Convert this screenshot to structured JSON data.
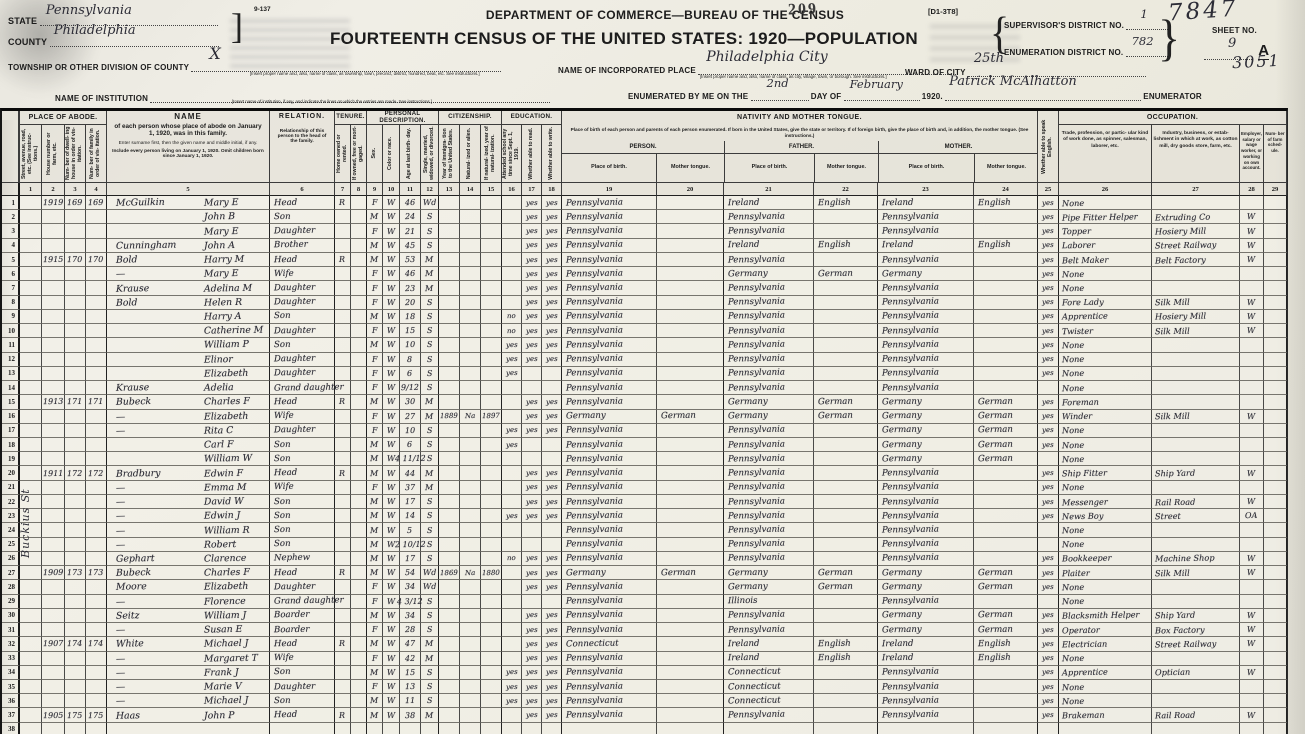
{
  "header": {
    "form_number": "9-137",
    "stamp": "209",
    "form_code": "[D1-3T8]",
    "dept_line": "DEPARTMENT OF COMMERCE—BUREAU OF THE CENSUS",
    "title_line": "FOURTEENTH CENSUS OF THE UNITED STATES: 1920—POPULATION",
    "state_label": "State",
    "state_value": "Pennsylvania",
    "county_label": "County",
    "county_value": "Philadelphia",
    "township_label": "Township or other division of county",
    "township_value": "X",
    "township_note": "[Insert proper name and, also, name of class, as township, town, precinct, district, hundred, beat, etc.   See instructions.]",
    "institution_label": "Name of Institution",
    "institution_note": "[Insert name of institution, if any, and indicate the lines on which the entries are made.   See instructions.]",
    "place_label": "Name of incorporated place",
    "place_value": "Philadelphia City",
    "place_note": "[Insert proper name and, also, name of class, as city, village, town, or borough.   See instructions.]",
    "ward_label": "Ward of city",
    "ward_value": "25th",
    "supervisor_label": "Supervisor's District No.",
    "supervisor_value": "1",
    "enumeration_label": "Enumeration District No.",
    "enumeration_value": "782",
    "sheet_label": "Sheet No.",
    "sheet_value": "9",
    "sheet_letter": "A",
    "handwritten_top": "7847",
    "handwritten_side": "3051",
    "enumerated_pre": "Enumerated by me on the",
    "enumerated_day": "2nd",
    "day_of_label": "day of",
    "enumerated_month": "February",
    "enumerated_year": "1920.",
    "enumerator_name": "Patrick McAlhatton",
    "enumerator_label": "Enumerator"
  },
  "table": {
    "street_name": "Buckius St",
    "groups": {
      "abode": "PLACE OF ABODE.",
      "tenure": "TENURE.",
      "persdesc": "PERSONAL DESCRIPTION.",
      "citizenship": "CITIZENSHIP.",
      "education": "EDUCATION.",
      "nativity": "NATIVITY AND MOTHER TONGUE.",
      "occupation": "OCCUPATION.",
      "person": "PERSON.",
      "father": "FATHER.",
      "mother": "MOTHER.",
      "pob": "Place of birth.",
      "tongue": "Mother tongue."
    },
    "name_header": {
      "title": "NAME",
      "line1": "of each person whose place of abode on January 1, 1920, was in this family.",
      "line2": "Enter surname first, then the given name and middle initial, if any.",
      "line3": "Include every person living on January 1, 1920.  Omit children born since January 1, 1920."
    },
    "relation_header": {
      "title": "RELATION.",
      "line1": "Relationship of this person to the head of the family."
    },
    "nativity_note": "Place of birth of each person and parents of each person enumerated.  If born in the United States, give the state or territory.  If of foreign birth, give the place of birth and, in addition, the mother tongue.  (See instructions.)",
    "cols": {
      "c1": "Street, avenue, road, etc.  (See instruc- tions.)",
      "c2": "House number or farm, etc.",
      "c3": "Num- ber of dwell- ing house in order of vis- itation.",
      "c4": "Num- ber of family in order of vis- itation.",
      "c7": "Home owned or rented.",
      "c8": "If owned, free or mort- gaged.",
      "c9": "Sex.",
      "c10": "Color or race.",
      "c11": "Age at last birth- day.",
      "c12": "Single, married, widowed, or divorced.",
      "c13": "Year of immigra- tion to the United States.",
      "c14": "Natural- ized or alien.",
      "c15": "If natural- ized, year of natural- ization.",
      "c16": "Attended school any time since Sept. 1, 1919.",
      "c17": "Whether able to read.",
      "c18": "Whether able to write.",
      "c25": "Whether able to speak English.",
      "c26": "Trade, profession, or partic- ular kind of work done, as spinner, salesman, laborer, etc.",
      "c27": "Industry, business, or estab- lishment in which at work, as cotton mill, dry goods store, farm, etc.",
      "c28": "Employer, salary or wage worker, or working on own account.",
      "c29": "Num- ber of farm sched- ule."
    },
    "col_numbers": [
      "1",
      "2",
      "3",
      "4",
      "5",
      "6",
      "7",
      "8",
      "9",
      "10",
      "11",
      "12",
      "13",
      "14",
      "15",
      "16",
      "17",
      "18",
      "19",
      "20",
      "21",
      "22",
      "23",
      "24",
      "25",
      "26",
      "27",
      "28",
      "29"
    ]
  },
  "rows": [
    {
      "num": "1",
      "house": "1919",
      "dwell": "169",
      "fam": "169",
      "surname": "McGuilkin",
      "given": "Mary E",
      "rel": "Head",
      "ten": "R",
      "sex": "F",
      "color": "W",
      "age": "46",
      "mar": "Wd",
      "read": "yes",
      "write": "yes",
      "pob": "Pennsylvania",
      "fpob": "Ireland",
      "ftongue": "English",
      "mpob": "Ireland",
      "mtongue": "English",
      "eng": "yes",
      "trade": "None"
    },
    {
      "num": "2",
      "given": "John B",
      "rel": "Son",
      "sex": "M",
      "color": "W",
      "age": "24",
      "mar": "S",
      "read": "yes",
      "write": "yes",
      "pob": "Pennsylvania",
      "fpob": "Pennsylvania",
      "mpob": "Pennsylvania",
      "eng": "yes",
      "trade": "Pipe Fitter Helper",
      "ind": "Extruding Co",
      "emp": "W"
    },
    {
      "num": "3",
      "given": "Mary E",
      "rel": "Daughter",
      "sex": "F",
      "color": "W",
      "age": "21",
      "mar": "S",
      "read": "yes",
      "write": "yes",
      "pob": "Pennsylvania",
      "fpob": "Pennsylvania",
      "mpob": "Pennsylvania",
      "eng": "yes",
      "trade": "Topper",
      "ind": "Hosiery Mill",
      "emp": "W"
    },
    {
      "num": "4",
      "surname": "Cunningham",
      "given": "John A",
      "rel": "Brother",
      "sex": "M",
      "color": "W",
      "age": "45",
      "mar": "S",
      "read": "yes",
      "write": "yes",
      "pob": "Pennsylvania",
      "fpob": "Ireland",
      "ftongue": "English",
      "mpob": "Ireland",
      "mtongue": "English",
      "eng": "yes",
      "trade": "Laborer",
      "ind": "Street Railway",
      "emp": "W"
    },
    {
      "num": "5",
      "house": "1915",
      "dwell": "170",
      "fam": "170",
      "surname": "Bold",
      "given": "Harry M",
      "rel": "Head",
      "ten": "R",
      "sex": "M",
      "color": "W",
      "age": "53",
      "mar": "M",
      "read": "yes",
      "write": "yes",
      "pob": "Pennsylvania",
      "fpob": "Pennsylvania",
      "mpob": "Pennsylvania",
      "eng": "yes",
      "trade": "Belt Maker",
      "ind": "Belt Factory",
      "emp": "W"
    },
    {
      "num": "6",
      "surname": "—",
      "given": "Mary E",
      "rel": "Wife",
      "sex": "F",
      "color": "W",
      "age": "46",
      "mar": "M",
      "read": "yes",
      "write": "yes",
      "pob": "Pennsylvania",
      "fpob": "Germany",
      "ftongue": "German",
      "mpob": "Germany",
      "eng": "yes",
      "trade": "None"
    },
    {
      "num": "7",
      "surname": "Krause",
      "given": "Adelina M",
      "rel": "Daughter",
      "sex": "F",
      "color": "W",
      "age": "23",
      "mar": "M",
      "read": "yes",
      "write": "yes",
      "pob": "Pennsylvania",
      "fpob": "Pennsylvania",
      "mpob": "Pennsylvania",
      "eng": "yes",
      "trade": "None"
    },
    {
      "num": "8",
      "surname": "Bold",
      "given": "Helen R",
      "rel": "Daughter",
      "sex": "F",
      "color": "W",
      "age": "20",
      "mar": "S",
      "read": "yes",
      "write": "yes",
      "pob": "Pennsylvania",
      "fpob": "Pennsylvania",
      "mpob": "Pennsylvania",
      "eng": "yes",
      "trade": "Fore Lady",
      "ind": "Silk Mill",
      "emp": "W"
    },
    {
      "num": "9",
      "given": "Harry A",
      "rel": "Son",
      "sex": "M",
      "color": "W",
      "age": "18",
      "mar": "S",
      "school": "no",
      "read": "yes",
      "write": "yes",
      "pob": "Pennsylvania",
      "fpob": "Pennsylvania",
      "mpob": "Pennsylvania",
      "eng": "yes",
      "trade": "Apprentice",
      "ind": "Hosiery Mill",
      "emp": "W"
    },
    {
      "num": "10",
      "given": "Catherine M",
      "rel": "Daughter",
      "sex": "F",
      "color": "W",
      "age": "15",
      "mar": "S",
      "school": "no",
      "read": "yes",
      "write": "yes",
      "pob": "Pennsylvania",
      "fpob": "Pennsylvania",
      "mpob": "Pennsylvania",
      "eng": "yes",
      "trade": "Twister",
      "ind": "Silk Mill",
      "emp": "W"
    },
    {
      "num": "11",
      "given": "William P",
      "rel": "Son",
      "sex": "M",
      "color": "W",
      "age": "10",
      "mar": "S",
      "school": "yes",
      "read": "yes",
      "write": "yes",
      "pob": "Pennsylvania",
      "fpob": "Pennsylvania",
      "mpob": "Pennsylvania",
      "eng": "yes",
      "trade": "None"
    },
    {
      "num": "12",
      "given": "Elinor",
      "rel": "Daughter",
      "sex": "F",
      "color": "W",
      "age": "8",
      "mar": "S",
      "school": "yes",
      "read": "yes",
      "write": "yes",
      "pob": "Pennsylvania",
      "fpob": "Pennsylvania",
      "mpob": "Pennsylvania",
      "eng": "yes",
      "trade": "None"
    },
    {
      "num": "13",
      "given": "Elizabeth",
      "rel": "Daughter",
      "sex": "F",
      "color": "W",
      "age": "6",
      "mar": "S",
      "school": "yes",
      "pob": "Pennsylvania",
      "fpob": "Pennsylvania",
      "mpob": "Pennsylvania",
      "eng": "yes",
      "trade": "None"
    },
    {
      "num": "14",
      "surname": "Krause",
      "given": "Adelia",
      "rel": "Grand daughter",
      "sex": "F",
      "color": "W",
      "age": "9/12",
      "mar": "S",
      "pob": "Pennsylvania",
      "fpob": "Pennsylvania",
      "mpob": "Pennsylvania",
      "trade": "None"
    },
    {
      "num": "15",
      "house": "1913",
      "dwell": "171",
      "fam": "171",
      "surname": "Bubeck",
      "given": "Charles F",
      "rel": "Head",
      "ten": "R",
      "sex": "M",
      "color": "W",
      "age": "30",
      "mar": "M",
      "read": "yes",
      "write": "yes",
      "pob": "Pennsylvania",
      "fpob": "Germany",
      "ftongue": "German",
      "mpob": "Germany",
      "mtongue": "German",
      "eng": "yes",
      "trade": "Foreman"
    },
    {
      "num": "16",
      "surname": "—",
      "given": "Elizabeth",
      "rel": "Wife",
      "sex": "F",
      "color": "W",
      "age": "27",
      "mar": "M",
      "imm": "1889",
      "nat": "Na",
      "natyr": "1897",
      "read": "yes",
      "write": "yes",
      "pob": "Germany",
      "tongue": "German",
      "fpob": "Germany",
      "ftongue": "German",
      "mpob": "Germany",
      "mtongue": "German",
      "eng": "yes",
      "trade": "Winder",
      "ind": "Silk Mill",
      "emp": "W"
    },
    {
      "num": "17",
      "surname": "—",
      "given": "Rita C",
      "rel": "Daughter",
      "sex": "F",
      "color": "W",
      "age": "10",
      "mar": "S",
      "school": "yes",
      "read": "yes",
      "write": "yes",
      "pob": "Pennsylvania",
      "fpob": "Pennsylvania",
      "mpob": "Germany",
      "mtongue": "German",
      "eng": "yes",
      "trade": "None"
    },
    {
      "num": "18",
      "given": "Carl F",
      "rel": "Son",
      "sex": "M",
      "color": "W",
      "age": "6",
      "mar": "S",
      "school": "yes",
      "pob": "Pennsylvania",
      "fpob": "Pennsylvania",
      "mpob": "Germany",
      "mtongue": "German",
      "eng": "yes",
      "trade": "None"
    },
    {
      "num": "19",
      "given": "William W",
      "rel": "Son",
      "sex": "M",
      "color": "W",
      "age": "4 11/12",
      "mar": "S",
      "pob": "Pennsylvania",
      "fpob": "Pennsylvania",
      "mpob": "Germany",
      "mtongue": "German",
      "trade": "None"
    },
    {
      "num": "20",
      "house": "1911",
      "dwell": "172",
      "fam": "172",
      "surname": "Bradbury",
      "given": "Edwin F",
      "rel": "Head",
      "ten": "R",
      "sex": "M",
      "color": "W",
      "age": "44",
      "mar": "M",
      "read": "yes",
      "write": "yes",
      "pob": "Pennsylvania",
      "fpob": "Pennsylvania",
      "mpob": "Pennsylvania",
      "eng": "yes",
      "trade": "Ship Fitter",
      "ind": "Ship Yard",
      "emp": "W"
    },
    {
      "num": "21",
      "surname": "—",
      "given": "Emma M",
      "rel": "Wife",
      "sex": "F",
      "color": "W",
      "age": "37",
      "mar": "M",
      "read": "yes",
      "write": "yes",
      "pob": "Pennsylvania",
      "fpob": "Pennsylvania",
      "mpob": "Pennsylvania",
      "eng": "yes",
      "trade": "None"
    },
    {
      "num": "22",
      "surname": "—",
      "given": "David W",
      "rel": "Son",
      "sex": "M",
      "color": "W",
      "age": "17",
      "mar": "S",
      "read": "yes",
      "write": "yes",
      "pob": "Pennsylvania",
      "fpob": "Pennsylvania",
      "mpob": "Pennsylvania",
      "eng": "yes",
      "trade": "Messenger",
      "ind": "Rail Road",
      "emp": "W"
    },
    {
      "num": "23",
      "surname": "—",
      "given": "Edwin J",
      "rel": "Son",
      "sex": "M",
      "color": "W",
      "age": "14",
      "mar": "S",
      "school": "yes",
      "read": "yes",
      "write": "yes",
      "pob": "Pennsylvania",
      "fpob": "Pennsylvania",
      "mpob": "Pennsylvania",
      "eng": "yes",
      "trade": "News Boy",
      "ind": "Street",
      "emp": "OA"
    },
    {
      "num": "24",
      "surname": "—",
      "given": "William R",
      "rel": "Son",
      "sex": "M",
      "color": "W",
      "age": "5",
      "mar": "S",
      "pob": "Pennsylvania",
      "fpob": "Pennsylvania",
      "mpob": "Pennsylvania",
      "trade": "None"
    },
    {
      "num": "25",
      "surname": "—",
      "given": "Robert",
      "rel": "Son",
      "sex": "M",
      "color": "W",
      "age": "2 10/12",
      "mar": "S",
      "pob": "Pennsylvania",
      "fpob": "Pennsylvania",
      "mpob": "Pennsylvania",
      "trade": "None"
    },
    {
      "num": "26",
      "surname": "Gephart",
      "given": "Clarence",
      "rel": "Nephew",
      "sex": "M",
      "color": "W",
      "age": "17",
      "mar": "S",
      "school": "no",
      "read": "yes",
      "write": "yes",
      "pob": "Pennsylvania",
      "fpob": "Pennsylvania",
      "mpob": "Pennsylvania",
      "eng": "yes",
      "trade": "Bookkeeper",
      "ind": "Machine Shop",
      "emp": "W"
    },
    {
      "num": "27",
      "house": "1909",
      "dwell": "173",
      "fam": "173",
      "surname": "Bubeck",
      "given": "Charles F",
      "rel": "Head",
      "ten": "R",
      "sex": "M",
      "color": "W",
      "age": "54",
      "mar": "Wd",
      "imm": "1869",
      "nat": "Na",
      "natyr": "1880",
      "read": "yes",
      "write": "yes",
      "pob": "Germany",
      "tongue": "German",
      "fpob": "Germany",
      "ftongue": "German",
      "mpob": "Germany",
      "mtongue": "German",
      "eng": "yes",
      "trade": "Plaiter",
      "ind": "Silk Mill",
      "emp": "W"
    },
    {
      "num": "28",
      "surname": "Moore",
      "given": "Elizabeth",
      "rel": "Daughter",
      "sex": "F",
      "color": "W",
      "age": "34",
      "mar": "Wd",
      "read": "yes",
      "write": "yes",
      "pob": "Pennsylvania",
      "fpob": "Germany",
      "ftongue": "German",
      "mpob": "Germany",
      "mtongue": "German",
      "eng": "yes",
      "trade": "None"
    },
    {
      "num": "29",
      "surname": "—",
      "given": "Florence",
      "rel": "Grand daughter",
      "sex": "F",
      "color": "W",
      "age": "4 3/12",
      "mar": "S",
      "pob": "Pennsylvania",
      "fpob": "Illinois",
      "mpob": "Pennsylvania",
      "trade": "None"
    },
    {
      "num": "30",
      "surname": "Seitz",
      "given": "William J",
      "rel": "Boarder",
      "sex": "M",
      "color": "W",
      "age": "34",
      "mar": "S",
      "read": "yes",
      "write": "yes",
      "pob": "Pennsylvania",
      "fpob": "Pennsylvania",
      "mpob": "Germany",
      "mtongue": "German",
      "eng": "yes",
      "trade": "Blacksmith Helper",
      "ind": "Ship Yard",
      "emp": "W"
    },
    {
      "num": "31",
      "surname": "—",
      "given": "Susan E",
      "rel": "Boarder",
      "sex": "F",
      "color": "W",
      "age": "28",
      "mar": "S",
      "read": "yes",
      "write": "yes",
      "pob": "Pennsylvania",
      "fpob": "Pennsylvania",
      "mpob": "Germany",
      "mtongue": "German",
      "eng": "yes",
      "trade": "Operator",
      "ind": "Box Factory",
      "emp": "W"
    },
    {
      "num": "32",
      "house": "1907",
      "dwell": "174",
      "fam": "174",
      "surname": "White",
      "given": "Michael J",
      "rel": "Head",
      "ten": "R",
      "sex": "M",
      "color": "W",
      "age": "47",
      "mar": "M",
      "read": "yes",
      "write": "yes",
      "pob": "Connecticut",
      "fpob": "Ireland",
      "ftongue": "English",
      "mpob": "Ireland",
      "mtongue": "English",
      "eng": "yes",
      "trade": "Electrician",
      "ind": "Street Railway",
      "emp": "W"
    },
    {
      "num": "33",
      "surname": "—",
      "given": "Margaret T",
      "rel": "Wife",
      "sex": "F",
      "color": "W",
      "age": "42",
      "mar": "M",
      "read": "yes",
      "write": "yes",
      "pob": "Pennsylvania",
      "fpob": "Ireland",
      "ftongue": "English",
      "mpob": "Ireland",
      "mtongue": "English",
      "eng": "yes",
      "trade": "None"
    },
    {
      "num": "34",
      "surname": "—",
      "given": "Frank J",
      "rel": "Son",
      "sex": "M",
      "color": "W",
      "age": "15",
      "mar": "S",
      "school": "yes",
      "read": "yes",
      "write": "yes",
      "pob": "Pennsylvania",
      "fpob": "Connecticut",
      "mpob": "Pennsylvania",
      "eng": "yes",
      "trade": "Apprentice",
      "ind": "Optician",
      "emp": "W"
    },
    {
      "num": "35",
      "surname": "—",
      "given": "Marie V",
      "rel": "Daughter",
      "sex": "F",
      "color": "W",
      "age": "13",
      "mar": "S",
      "school": "yes",
      "read": "yes",
      "write": "yes",
      "pob": "Pennsylvania",
      "fpob": "Connecticut",
      "mpob": "Pennsylvania",
      "eng": "yes",
      "trade": "None"
    },
    {
      "num": "36",
      "surname": "—",
      "given": "Michael J",
      "rel": "Son",
      "sex": "M",
      "color": "W",
      "age": "11",
      "mar": "S",
      "school": "yes",
      "read": "yes",
      "write": "yes",
      "pob": "Pennsylvania",
      "fpob": "Connecticut",
      "mpob": "Pennsylvania",
      "eng": "yes",
      "trade": "None"
    },
    {
      "num": "37",
      "house": "1905",
      "dwell": "175",
      "fam": "175",
      "surname": "Haas",
      "given": "John P",
      "rel": "Head",
      "ten": "R",
      "sex": "M",
      "color": "W",
      "age": "38",
      "mar": "M",
      "read": "yes",
      "write": "yes",
      "pob": "Pennsylvania",
      "fpob": "Pennsylvania",
      "mpob": "Pennsylvania",
      "eng": "yes",
      "trade": "Brakeman",
      "ind": "Rail Road",
      "emp": "W"
    },
    {
      "num": "38"
    }
  ]
}
